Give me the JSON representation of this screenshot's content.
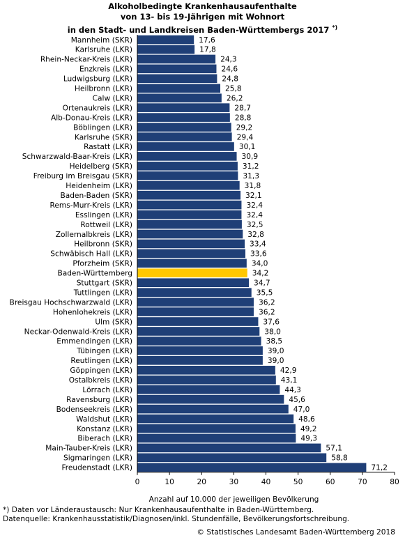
{
  "chart_data": {
    "type": "bar",
    "orientation": "horizontal",
    "title_lines": [
      "Alkoholbedingte Krankenhausaufenthalte",
      "von 13- bis 19-Jährigen mit Wohnort",
      "in den Stadt- und Landkreisen Baden-Württembergs 2017"
    ],
    "title_note": "*)",
    "xlabel": "Anzahl auf 10.000 der jeweiligen Bevölkerung",
    "xlim": [
      0,
      80
    ],
    "xticks": [
      0,
      10,
      20,
      30,
      40,
      50,
      60,
      70,
      80
    ],
    "xtick_labels": [
      "0",
      "10",
      "20",
      "30",
      "40",
      "50",
      "60",
      "70",
      "80"
    ],
    "grid": false,
    "colors": {
      "bar": "#1f3f77",
      "highlight": "#ffc800",
      "bar_edge": "#ffffff"
    },
    "highlight_category": "Baden-Württemberg",
    "categories": [
      "Mannheim (SKR)",
      "Karlsruhe (LKR)",
      "Rhein-Neckar-Kreis (LKR)",
      "Enzkreis (LKR)",
      "Ludwigsburg (LKR)",
      "Heilbronn (LKR)",
      "Calw (LKR)",
      "Ortenaukreis (LKR)",
      "Alb-Donau-Kreis (LKR)",
      "Böblingen (LKR)",
      "Karlsruhe (SKR)",
      "Rastatt (LKR)",
      "Schwarzwald-Baar-Kreis (LKR)",
      "Heidelberg (SKR)",
      "Freiburg im Breisgau (SKR)",
      "Heidenheim (LKR)",
      "Baden-Baden (SKR)",
      "Rems-Murr-Kreis (LKR)",
      "Esslingen (LKR)",
      "Rottweil (LKR)",
      "Zollernalbkreis (LKR)",
      "Heilbronn (SKR)",
      "Schwäbisch Hall (LKR)",
      "Pforzheim (SKR)",
      "Baden-Württemberg",
      "Stuttgart (SKR)",
      "Tuttlingen (LKR)",
      "Breisgau Hochschwarzwald (LKR)",
      "Hohenlohekreis (LKR)",
      "Ulm (SKR)",
      "Neckar-Odenwald-Kreis (LKR)",
      "Emmendingen (LKR)",
      "Tübingen (LKR)",
      "Reutlingen (LKR)",
      "Göppingen (LKR)",
      "Ostalbkreis (LKR)",
      "Lörrach (LKR)",
      "Ravensburg (LKR)",
      "Bodenseekreis (LKR)",
      "Waldshut (LKR)",
      "Konstanz (LKR)",
      "Biberach (LKR)",
      "Main-Tauber-Kreis (LKR)",
      "Sigmaringen (LKR)",
      "Freudenstadt (LKR)"
    ],
    "values": [
      17.6,
      17.8,
      24.3,
      24.6,
      24.8,
      25.8,
      26.2,
      28.7,
      28.8,
      29.2,
      29.4,
      30.1,
      30.9,
      31.2,
      31.3,
      31.8,
      32.1,
      32.4,
      32.4,
      32.5,
      32.8,
      33.4,
      33.6,
      34.0,
      34.2,
      34.7,
      35.5,
      36.2,
      36.2,
      37.6,
      38.0,
      38.5,
      39.0,
      39.0,
      42.9,
      43.1,
      44.3,
      45.6,
      47.0,
      48.6,
      49.2,
      49.3,
      57.1,
      58.8,
      71.2
    ],
    "value_labels": [
      "17,6",
      "17,8",
      "24,3",
      "24,6",
      "24,8",
      "25,8",
      "26,2",
      "28,7",
      "28,8",
      "29,2",
      "29,4",
      "30,1",
      "30,9",
      "31,2",
      "31,3",
      "31,8",
      "32,1",
      "32,4",
      "32,4",
      "32,5",
      "32,8",
      "33,4",
      "33,6",
      "34,0",
      "34,2",
      "34,7",
      "35,5",
      "36,2",
      "36,2",
      "37,6",
      "38,0",
      "38,5",
      "39,0",
      "39,0",
      "42,9",
      "43,1",
      "44,3",
      "45,6",
      "47,0",
      "48,6",
      "49,2",
      "49,3",
      "57,1",
      "58,8",
      "71,2"
    ]
  },
  "footnotes": [
    "*) Daten vor Länderaustausch: Nur Krankenhausaufenthalte in Baden-Württemberg.",
    "Datenquelle: Krankenhausstatistik/Diagnosen/inkl. Stundenfälle, Bevölkerungsfortschreibung."
  ],
  "copyright": "© Statistisches Landesamt Baden-Württemberg 2018"
}
